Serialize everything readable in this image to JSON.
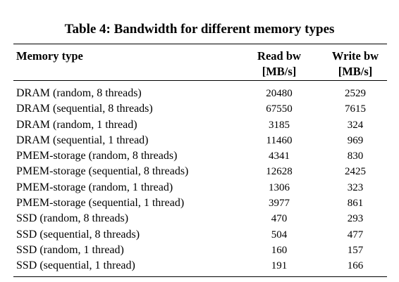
{
  "caption": "Table 4: Bandwidth for different memory types",
  "header": {
    "memory_type": "Memory type",
    "read_line1": "Read bw",
    "read_line2": "[MB/s]",
    "write_line1": "Write bw",
    "write_line2": "[MB/s]"
  },
  "rows": [
    {
      "type": "DRAM (random, 8 threads)",
      "read": "20480",
      "write": "2529"
    },
    {
      "type": "DRAM (sequential, 8 threads)",
      "read": "67550",
      "write": "7615"
    },
    {
      "type": "DRAM (random, 1 thread)",
      "read": "3185",
      "write": "324"
    },
    {
      "type": "DRAM (sequential, 1 thread)",
      "read": "11460",
      "write": "969"
    },
    {
      "type": "PMEM-storage (random, 8 threads)",
      "read": "4341",
      "write": "830"
    },
    {
      "type": "PMEM-storage (sequential, 8 threads)",
      "read": "12628",
      "write": "2425"
    },
    {
      "type": "PMEM-storage (random, 1 thread)",
      "read": "1306",
      "write": "323"
    },
    {
      "type": "PMEM-storage (sequential, 1 thread)",
      "read": "3977",
      "write": "861"
    },
    {
      "type": "SSD (random, 8 threads)",
      "read": "470",
      "write": "293"
    },
    {
      "type": "SSD (sequential, 8 threads)",
      "read": "504",
      "write": "477"
    },
    {
      "type": "SSD (random, 1 thread)",
      "read": "160",
      "write": "157"
    },
    {
      "type": "SSD (sequential, 1 thread)",
      "read": "191",
      "write": "166"
    }
  ]
}
